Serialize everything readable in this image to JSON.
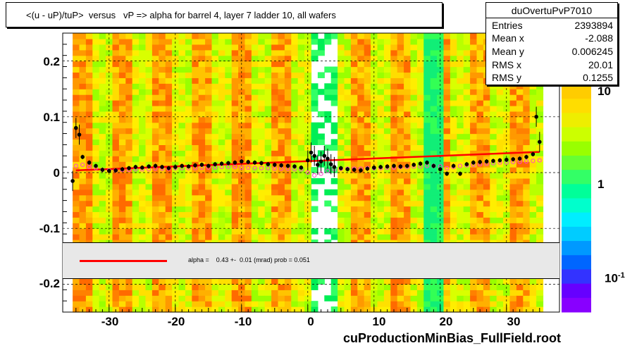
{
  "chart_data": {
    "type": "heatmap",
    "title": "<(u - uP)/tuP>  versus   vP => alpha for barrel 4, layer 7 ladder 10, all wafers",
    "xlim": [
      -37,
      38
    ],
    "ylim": [
      -0.25,
      0.25
    ],
    "x_ticks": [
      "-30",
      "-20",
      "-10",
      "0",
      "10",
      "20",
      "30"
    ],
    "x_tick_values": [
      -30,
      -20,
      -10,
      0,
      10,
      20,
      30
    ],
    "y_ticks": [
      "0.2",
      "0.1",
      "0",
      "-0.1",
      "-0.2"
    ],
    "y_tick_values": [
      0.2,
      0.1,
      0,
      -0.1,
      -0.2
    ],
    "z_ticks": [
      "10",
      "1",
      "10"
    ],
    "z_tick_exponent": "-1",
    "grid": true,
    "stats": {
      "name": "duOvertuPvP7010",
      "rows": [
        {
          "label": "Entries",
          "value": "2393894"
        },
        {
          "label": "Mean x",
          "value": "-2.088"
        },
        {
          "label": "Mean y",
          "value": "0.006245"
        },
        {
          "label": "RMS x",
          "value": "20.01"
        },
        {
          "label": "RMS y",
          "value": "0.1255"
        }
      ]
    },
    "fit_legend": "alpha =    0.43 +-  0.01 (mrad) prob = 0.051",
    "fit_line": {
      "x": [
        -35,
        35
      ],
      "y": [
        0.004,
        0.037
      ],
      "color": "#ff0000"
    },
    "profile_black": {
      "x": [
        -35.5,
        -35,
        -34.5,
        -34,
        -33,
        -32,
        -31,
        -30,
        -29,
        -28,
        -27,
        -26,
        -25,
        -24,
        -23,
        -22,
        -21,
        -20,
        -19,
        -18,
        -17,
        -16,
        -15,
        -14,
        -13,
        -12,
        -11,
        -10,
        -9,
        -8,
        -7,
        -6,
        -5,
        -4,
        -3,
        -2,
        -1,
        0,
        0.5,
        1,
        1.5,
        2,
        2.5,
        3,
        3.5,
        4,
        5,
        6,
        7,
        8,
        9,
        10,
        11,
        12,
        13,
        14,
        15,
        16,
        17,
        18,
        19,
        20,
        21,
        22,
        23,
        24,
        25,
        26,
        27,
        28,
        29,
        30,
        31,
        32,
        33,
        34,
        34.5,
        35
      ],
      "y": [
        -0.015,
        0.08,
        0.068,
        0.028,
        0.018,
        0.012,
        0.005,
        0.003,
        0.004,
        0.006,
        0.008,
        0.01,
        0.009,
        0.011,
        0.012,
        0.01,
        0.008,
        0.01,
        0.012,
        0.011,
        0.013,
        0.014,
        0.012,
        0.015,
        0.016,
        0.017,
        0.018,
        0.02,
        0.019,
        0.018,
        0.017,
        0.015,
        0.014,
        0.013,
        0.012,
        0.011,
        0.009,
        0.022,
        0.036,
        0.03,
        0.014,
        0.02,
        0.03,
        0.025,
        0.015,
        0.01,
        0.008,
        0.006,
        0.005,
        0.004,
        0.007,
        0.009,
        0.01,
        0.011,
        0.012,
        0.011,
        0.012,
        0.014,
        0.016,
        0.018,
        0.012,
        0.006,
        -0.002,
        0.012,
        -0.002,
        0.015,
        0.018,
        0.019,
        0.02,
        0.021,
        0.022,
        0.023,
        0.024,
        0.025,
        0.028,
        0.033,
        0.1,
        0.055
      ]
    },
    "profile_pink": {
      "x": [
        -35,
        -34,
        -33,
        -32,
        -31,
        -30,
        -29,
        -28,
        -27,
        -26,
        -25,
        -24,
        -23,
        -22,
        -21,
        -20,
        -19,
        -18,
        -17,
        -16,
        -15,
        -14,
        -13,
        -12,
        -11,
        -10,
        -9,
        -8,
        -7,
        -6,
        -5,
        -4,
        -3,
        -2,
        -1,
        0,
        1,
        2,
        3,
        4,
        5,
        6,
        7,
        8,
        9,
        10,
        11,
        12,
        13,
        14,
        15,
        16,
        17,
        18,
        19,
        20,
        21,
        22,
        23,
        24,
        25,
        26,
        27,
        28,
        29,
        30,
        31,
        32,
        33,
        34,
        35
      ],
      "y": [
        0.012,
        0.014,
        0.01,
        0.008,
        0.005,
        0.004,
        0.004,
        0.005,
        0.005,
        0.006,
        0.006,
        0.006,
        0.007,
        0.007,
        0.007,
        0.008,
        0.008,
        0.008,
        0.008,
        0.009,
        0.009,
        0.009,
        0.01,
        0.01,
        0.01,
        0.009,
        0.009,
        0.008,
        0.008,
        0.008,
        0.007,
        0.007,
        0.007,
        0.006,
        0.006,
        0.0,
        -0.005,
        -0.002,
        0.003,
        0.006,
        0.007,
        0.007,
        0.007,
        0.007,
        0.008,
        0.008,
        0.008,
        0.009,
        0.009,
        0.01,
        0.01,
        0.011,
        0.011,
        0.012,
        0.012,
        0.011,
        0.008,
        0.01,
        0.012,
        0.013,
        0.014,
        0.015,
        0.016,
        0.017,
        0.018,
        0.018,
        0.019,
        0.019,
        0.02,
        0.021,
        0.022
      ]
    }
  }
}
